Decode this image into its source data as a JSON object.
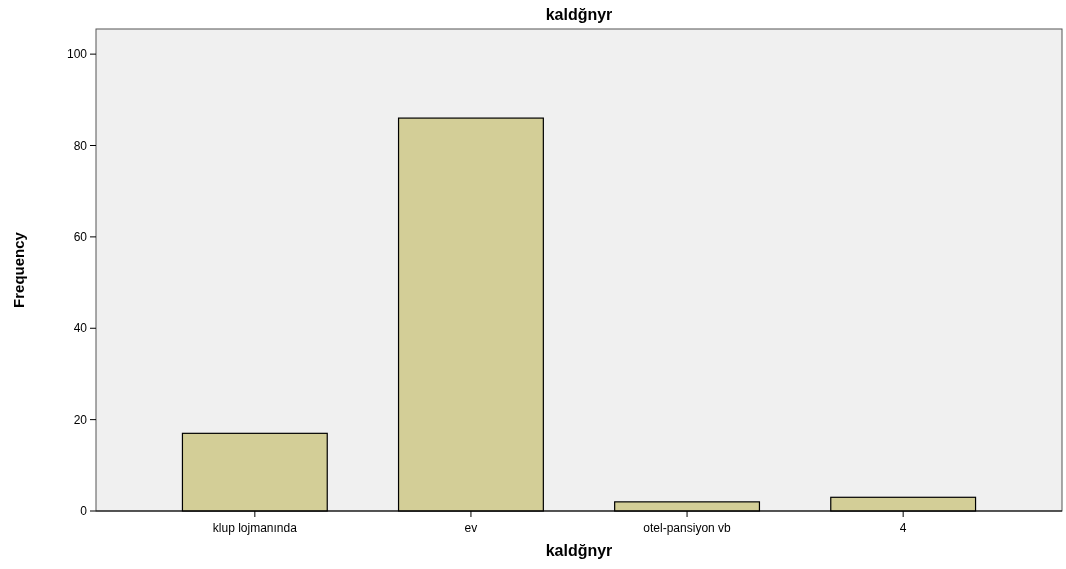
{
  "chart_data": {
    "type": "bar",
    "title": "kaldğnyr",
    "xlabel": "kaldğnyr",
    "ylabel": "Frequency",
    "categories": [
      "klup lojmanında",
      "ev",
      "otel-pansiyon vb",
      "4"
    ],
    "values": [
      17,
      86,
      2,
      3
    ],
    "color": "#d3ce97",
    "ylim": [
      0,
      105.5
    ],
    "yticks": [
      0,
      20,
      40,
      60,
      80,
      100
    ],
    "grid": false
  }
}
